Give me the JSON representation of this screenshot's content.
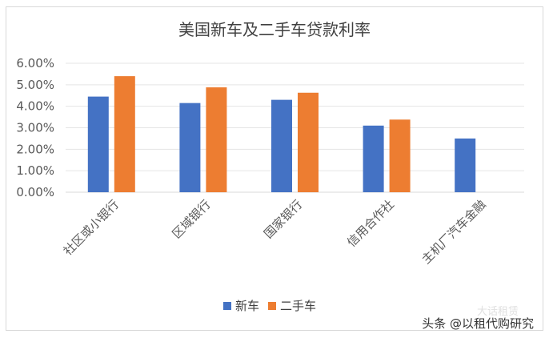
{
  "chart_data": {
    "type": "bar",
    "title": "美国新车及二手车贷款利率",
    "categories": [
      "社区或小银行",
      "区域银行",
      "国家银行",
      "信用合作社",
      "主机厂汽车金融"
    ],
    "series": [
      {
        "name": "新车",
        "values": [
          0.0445,
          0.0415,
          0.043,
          0.031,
          0.025
        ]
      },
      {
        "name": "二手车",
        "values": [
          0.054,
          0.0488,
          0.0463,
          0.0338,
          null
        ]
      }
    ],
    "y_ticks": [
      "0.00%",
      "1.00%",
      "2.00%",
      "3.00%",
      "4.00%",
      "5.00%",
      "6.00%"
    ],
    "ylim": [
      0,
      0.06
    ],
    "grid": true,
    "legend_position": "bottom",
    "colors": [
      "#4472c4",
      "#ed7d31"
    ]
  },
  "watermark": {
    "faded_text": "大话租赁",
    "text": "头条 @以租代购研究"
  }
}
